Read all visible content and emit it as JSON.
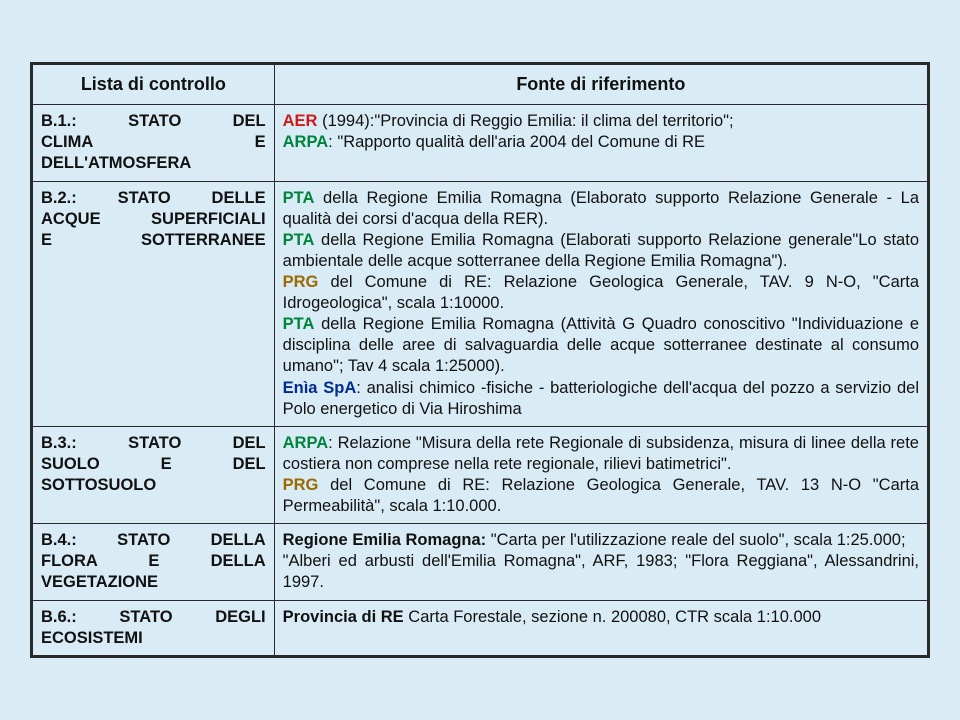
{
  "header": {
    "left": "Lista di controllo",
    "right": "Fonte di riferimento"
  },
  "rows": [
    {
      "left_lines": [
        "B.1.: STATO DEL",
        "CLIMA E",
        "DELL'ATMOSFERA"
      ],
      "segments": [
        {
          "cls": "src-aer",
          "text": "AER"
        },
        {
          "cls": "body-text",
          "text": " (1994):\"Provincia di Reggio Emilia: il clima del territorio\";"
        },
        {
          "cls": "br"
        },
        {
          "cls": "src-arpa",
          "text": "ARPA"
        },
        {
          "cls": "body-text",
          "text": ": \"Rapporto qualità dell'aria 2004 del Comune di RE"
        }
      ]
    },
    {
      "left_lines": [
        "B.2.: STATO DELLE",
        "ACQUE SUPERFICIALI",
        "E SOTTERRANEE"
      ],
      "segments": [
        {
          "cls": "src-pta",
          "text": "PTA"
        },
        {
          "cls": "body-text",
          "text": " della Regione Emilia Romagna (Elaborato supporto Relazione Generale - La qualità dei corsi d'acqua della RER)."
        },
        {
          "cls": "br"
        },
        {
          "cls": "src-pta",
          "text": "PTA"
        },
        {
          "cls": "body-text",
          "text": " della Regione Emilia Romagna (Elaborati supporto Relazione generale\"Lo stato ambientale delle acque sotterranee della Regione Emilia Romagna\")."
        },
        {
          "cls": "br"
        },
        {
          "cls": "src-prg",
          "text": "PRG"
        },
        {
          "cls": "body-text",
          "text": " del Comune di RE: Relazione Geologica Generale, TAV. 9 N-O, \"Carta Idrogeologica\", scala 1:10000."
        },
        {
          "cls": "br"
        },
        {
          "cls": "src-pta",
          "text": "PTA"
        },
        {
          "cls": "body-text",
          "text": " della Regione Emilia Romagna (Attività G Quadro conoscitivo \"Individuazione e disciplina delle aree di salvaguardia delle acque sotterranee destinate al consumo umano\"; Tav 4 scala 1:25000)."
        },
        {
          "cls": "br"
        },
        {
          "cls": "src-enia",
          "text": "Enìa SpA"
        },
        {
          "cls": "body-text",
          "text": ": analisi chimico -fisiche - batteriologiche dell'acqua del pozzo a servizio del Polo energetico di Via Hiroshima"
        }
      ]
    },
    {
      "left_lines": [
        "B.3.: STATO DEL",
        "SUOLO E DEL",
        "SOTTOSUOLO"
      ],
      "segments": [
        {
          "cls": "src-arpa",
          "text": "ARPA"
        },
        {
          "cls": "body-text",
          "text": ": Relazione \"Misura della rete Regionale di subsidenza, misura di linee della rete costiera non comprese nella rete regionale, rilievi batimetrici\"."
        },
        {
          "cls": "br"
        },
        {
          "cls": "src-prg",
          "text": "PRG"
        },
        {
          "cls": "body-text",
          "text": " del Comune di RE: Relazione Geologica Generale, TAV. 13 N-O \"Carta Permeabilità\", scala 1:10.000."
        }
      ]
    },
    {
      "left_lines": [
        "B.4.: STATO DELLA",
        "FLORA E DELLA",
        "VEGETAZIONE"
      ],
      "segments": [
        {
          "cls": "src-rer",
          "text": "Regione Emilia Romagna:"
        },
        {
          "cls": "body-text",
          "text": " \"Carta per l'utilizzazione reale del suolo\", scala 1:25.000;"
        },
        {
          "cls": "br"
        },
        {
          "cls": "body-text",
          "text": "\"Alberi ed arbusti dell'Emilia Romagna\", ARF, 1983;   \"Flora Reggiana\", Alessandrini, 1997."
        }
      ]
    },
    {
      "left_lines": [
        "B.6.: STATO DEGLI",
        "ECOSISTEMI"
      ],
      "segments": [
        {
          "cls": "src-prov",
          "text": "Provincia di RE"
        },
        {
          "cls": "body-text",
          "text": " Carta Forestale, sezione n. 200080, CTR scala 1:10.000"
        }
      ]
    }
  ]
}
